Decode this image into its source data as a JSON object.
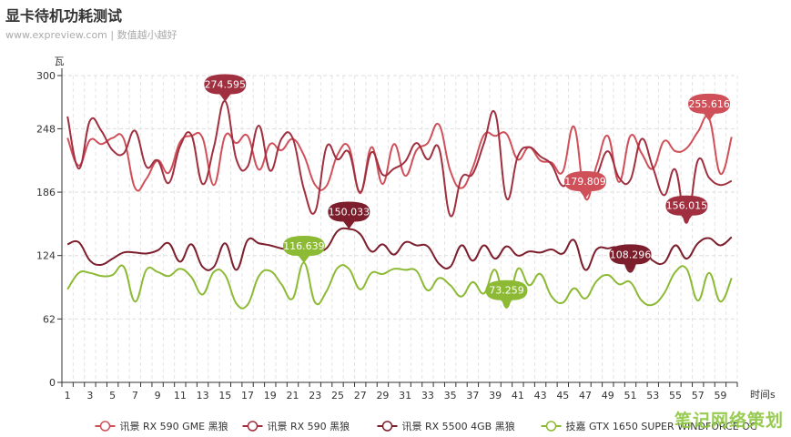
{
  "header": {
    "title": "显卡待机功耗测试",
    "subtitle": "www.expreview.com | 数值越小越好"
  },
  "watermark": "笔记网络策划",
  "chart_data": {
    "type": "line",
    "ylabel": "瓦",
    "xlabel": "时间s",
    "ylim": [
      0,
      300
    ],
    "yticks": [
      0,
      62,
      124,
      186,
      248,
      300
    ],
    "x": [
      1,
      2,
      3,
      4,
      5,
      6,
      7,
      8,
      9,
      10,
      11,
      12,
      13,
      14,
      15,
      16,
      17,
      18,
      19,
      20,
      21,
      22,
      23,
      24,
      25,
      26,
      27,
      28,
      29,
      30,
      31,
      32,
      33,
      34,
      35,
      36,
      37,
      38,
      39,
      40,
      41,
      42,
      43,
      44,
      45,
      46,
      47,
      48,
      49,
      50,
      51,
      52,
      53,
      54,
      55,
      56,
      57,
      58,
      59,
      60
    ],
    "xticks": [
      1,
      3,
      5,
      7,
      9,
      11,
      13,
      15,
      17,
      19,
      21,
      23,
      25,
      27,
      29,
      31,
      33,
      35,
      37,
      39,
      41,
      43,
      45,
      47,
      49,
      51,
      53,
      55,
      57,
      59
    ],
    "grid": true,
    "legend_position": "bottom",
    "series": [
      {
        "name": "讯景 RX 590 GME 黑狼",
        "color": "#d0505a",
        "values": [
          239,
          212,
          237,
          233,
          239,
          238,
          190,
          199,
          217,
          205,
          235,
          241,
          239,
          193,
          241,
          234,
          241,
          208,
          233,
          227,
          238,
          222,
          193,
          192,
          223,
          230,
          185,
          230,
          194,
          233,
          202,
          227,
          234,
          252,
          207,
          190,
          210,
          242,
          241,
          243,
          218,
          230,
          217,
          215,
          206,
          250,
          180,
          212,
          241,
          196,
          241,
          224,
          209,
          236,
          226,
          229,
          245,
          258,
          204,
          240
        ],
        "max": {
          "label": "255.616",
          "x": 58,
          "y": 255.616
        },
        "min": {
          "label": "179.809",
          "x": 47,
          "y": 179.809
        }
      },
      {
        "name": "讯景 RX 590 黑狼",
        "color": "#a03040",
        "values": [
          260,
          209,
          256,
          246,
          227,
          224,
          246,
          211,
          217,
          195,
          231,
          242,
          194,
          230,
          275,
          218,
          211,
          251,
          207,
          238,
          239,
          189,
          167,
          230,
          218,
          225,
          186,
          225,
          203,
          209,
          216,
          234,
          218,
          229,
          163,
          200,
          204,
          234,
          263,
          180,
          221,
          230,
          221,
          213,
          192,
          204,
          186,
          202,
          226,
          200,
          198,
          238,
          210,
          183,
          208,
          156,
          217,
          200,
          193,
          197
        ],
        "max": {
          "label": "274.595",
          "x": 15,
          "y": 274.595
        },
        "min": {
          "label": "156.015",
          "x": 56,
          "y": 156.015
        }
      },
      {
        "name": "讯景 RX 5500 4GB 黑狼",
        "color": "#7d1e2c",
        "values": [
          135,
          137,
          119,
          115,
          121,
          127,
          127,
          126,
          129,
          136,
          118,
          135,
          113,
          113,
          136,
          110,
          139,
          136,
          134,
          131,
          129,
          130,
          129,
          131,
          148,
          150,
          145,
          128,
          135,
          125,
          137,
          134,
          133,
          116,
          113,
          134,
          119,
          134,
          121,
          133,
          124,
          128,
          127,
          130,
          126,
          139,
          110,
          130,
          131,
          130,
          108,
          130,
          119,
          117,
          134,
          121,
          136,
          141,
          134,
          142
        ],
        "max": {
          "label": "150.033",
          "x": 26,
          "y": 150.033
        },
        "min": {
          "label": "108.296",
          "x": 51,
          "y": 108.296
        }
      },
      {
        "name": "技嘉 GTX 1650 SUPER WINDFORCE OC",
        "color": "#8dba34",
        "values": [
          91,
          107,
          107,
          104,
          105,
          113,
          79,
          110,
          108,
          104,
          111,
          103,
          86,
          108,
          105,
          77,
          76,
          104,
          109,
          96,
          82,
          117,
          78,
          89,
          112,
          111,
          91,
          107,
          106,
          111,
          110,
          109,
          90,
          102,
          95,
          84,
          98,
          87,
          110,
          73,
          111,
          95,
          106,
          84,
          78,
          92,
          82,
          99,
          105,
          96,
          98,
          80,
          76,
          87,
          108,
          111,
          80,
          107,
          79,
          102
        ],
        "max": {
          "label": "116.639",
          "x": 22,
          "y": 116.639
        },
        "min": {
          "label": "73.259",
          "x": 40,
          "y": 73.259
        }
      }
    ]
  }
}
